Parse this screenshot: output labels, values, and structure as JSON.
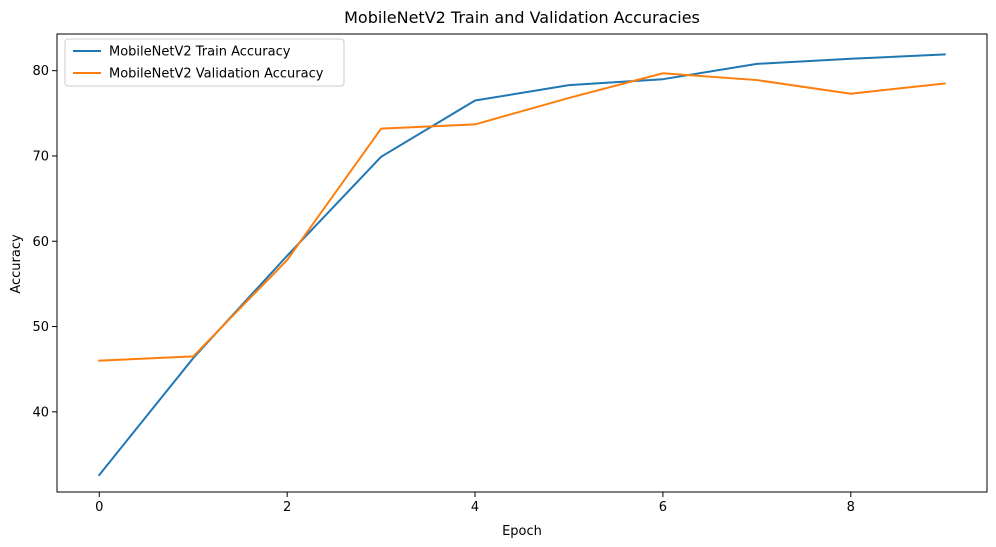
{
  "chart_data": {
    "type": "line",
    "title": "MobileNetV2 Train and Validation Accuracies",
    "xlabel": "Epoch",
    "ylabel": "Accuracy",
    "x": [
      0,
      1,
      2,
      3,
      4,
      5,
      6,
      7,
      8,
      9
    ],
    "xlim": [
      -0.45,
      9.45
    ],
    "ylim": [
      30.6,
      84.3
    ],
    "xticks": [
      0,
      2,
      4,
      6,
      8
    ],
    "yticks": [
      40,
      50,
      60,
      70,
      80
    ],
    "grid": false,
    "legend_position": "top-left",
    "series": [
      {
        "name": "MobileNetV2 Train Accuracy",
        "color": "#1f77b4",
        "values": [
          32.6,
          46.3,
          58.3,
          69.9,
          76.5,
          78.3,
          79.0,
          80.8,
          81.4,
          81.9
        ]
      },
      {
        "name": "MobileNetV2 Validation Accuracy",
        "color": "#ff7f0e",
        "values": [
          46.0,
          46.5,
          57.8,
          73.2,
          73.7,
          76.8,
          79.7,
          78.9,
          77.3,
          78.5
        ]
      }
    ]
  }
}
